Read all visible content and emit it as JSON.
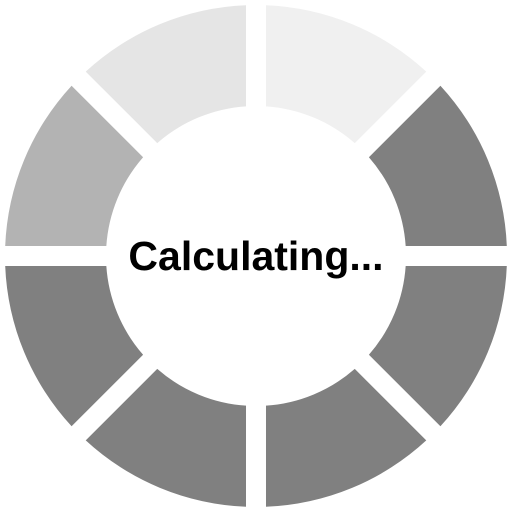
{
  "status": {
    "label": "Calculating..."
  },
  "spinner": {
    "segment_count": 8,
    "segments": [
      {
        "position": "top-right",
        "color": "#f0f0f0"
      },
      {
        "position": "right-top",
        "color": "#808080"
      },
      {
        "position": "right-bottom",
        "color": "#808080"
      },
      {
        "position": "bottom-right",
        "color": "#808080"
      },
      {
        "position": "bottom-left",
        "color": "#808080"
      },
      {
        "position": "left-bottom",
        "color": "#808080"
      },
      {
        "position": "left-top",
        "color": "#b3b3b3"
      },
      {
        "position": "top-left",
        "color": "#e5e5e5"
      }
    ]
  }
}
